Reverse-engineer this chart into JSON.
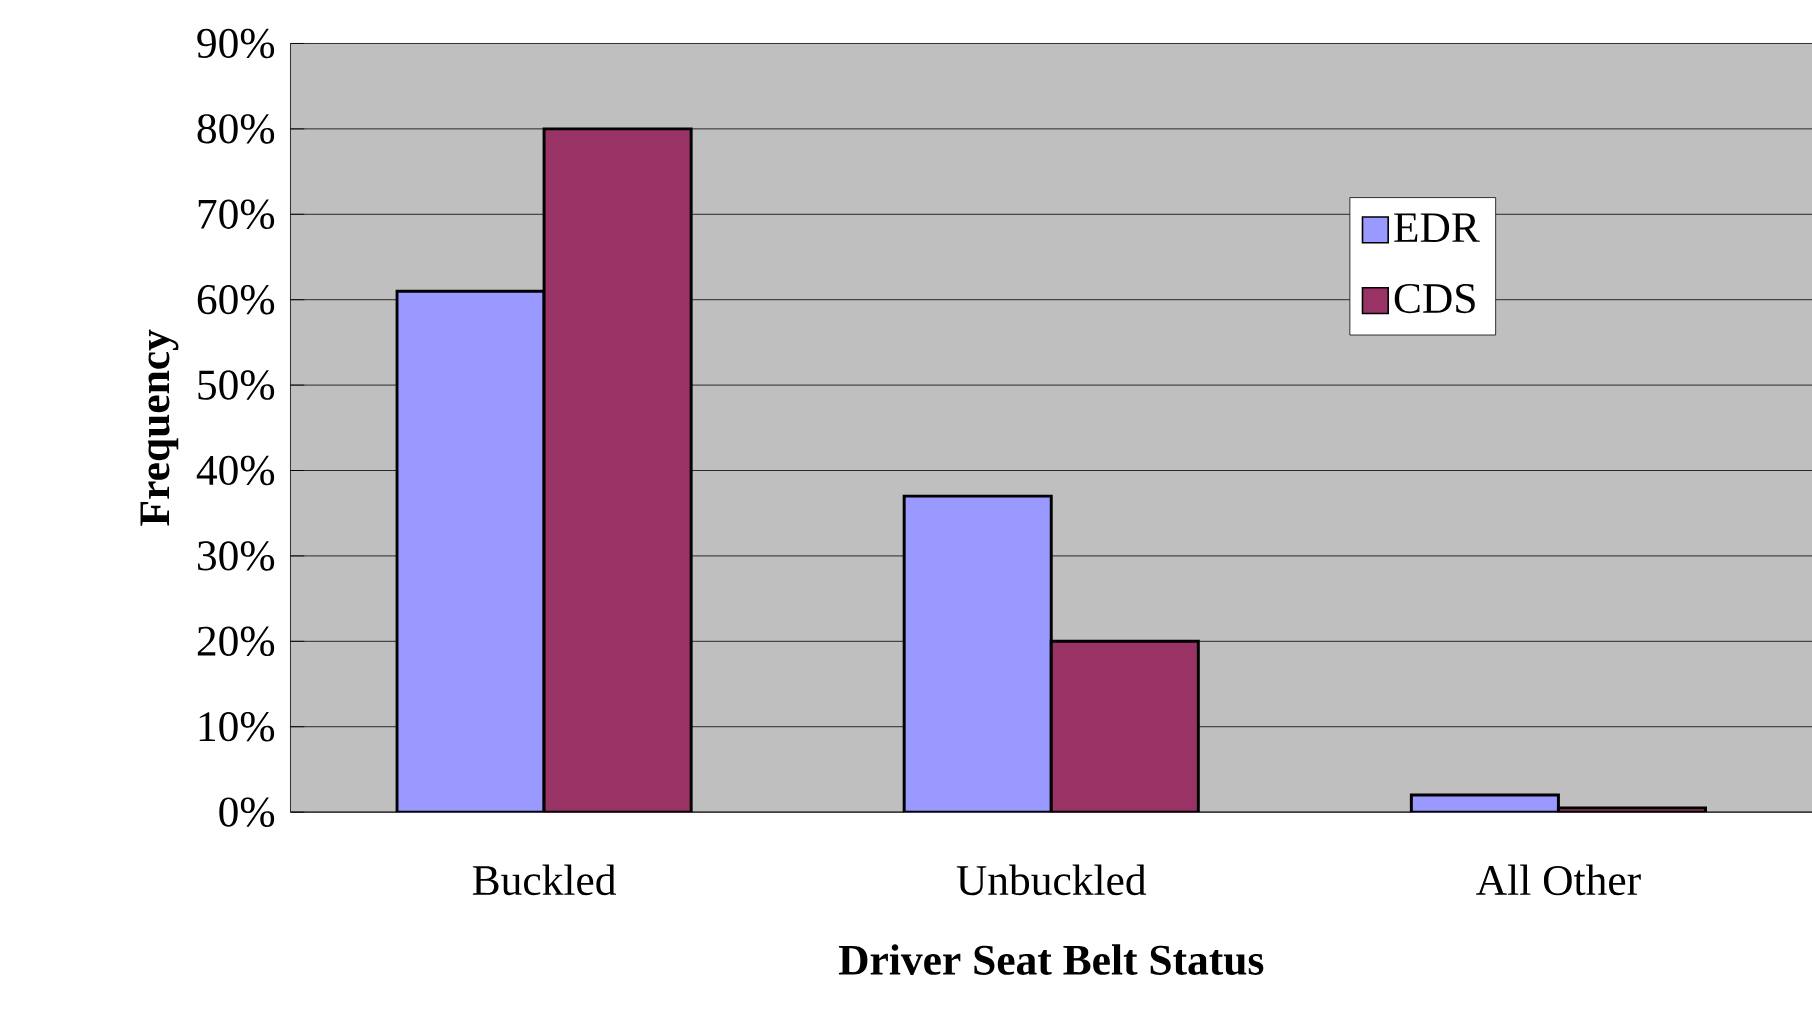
{
  "chart_data": {
    "type": "bar",
    "xlabel": "Driver Seat Belt Status",
    "ylabel": "Frequency",
    "categories": [
      "Buckled",
      "Unbuckled",
      "All Other"
    ],
    "series": [
      {
        "name": "EDR",
        "color": "#9999ff",
        "values": [
          61,
          37,
          2
        ]
      },
      {
        "name": "CDS",
        "color": "#993366",
        "values": [
          80,
          20,
          0.5
        ]
      }
    ],
    "ylim": [
      0,
      90
    ],
    "yticks": [
      {
        "value": 0,
        "label": "0%"
      },
      {
        "value": 10,
        "label": "10%"
      },
      {
        "value": 20,
        "label": "20%"
      },
      {
        "value": 30,
        "label": "30%"
      },
      {
        "value": 40,
        "label": "40%"
      },
      {
        "value": 50,
        "label": "50%"
      },
      {
        "value": 60,
        "label": "60%"
      },
      {
        "value": 70,
        "label": "70%"
      },
      {
        "value": 80,
        "label": "80%"
      },
      {
        "value": 90,
        "label": "90%"
      }
    ],
    "grid": "y",
    "legend": "right"
  }
}
